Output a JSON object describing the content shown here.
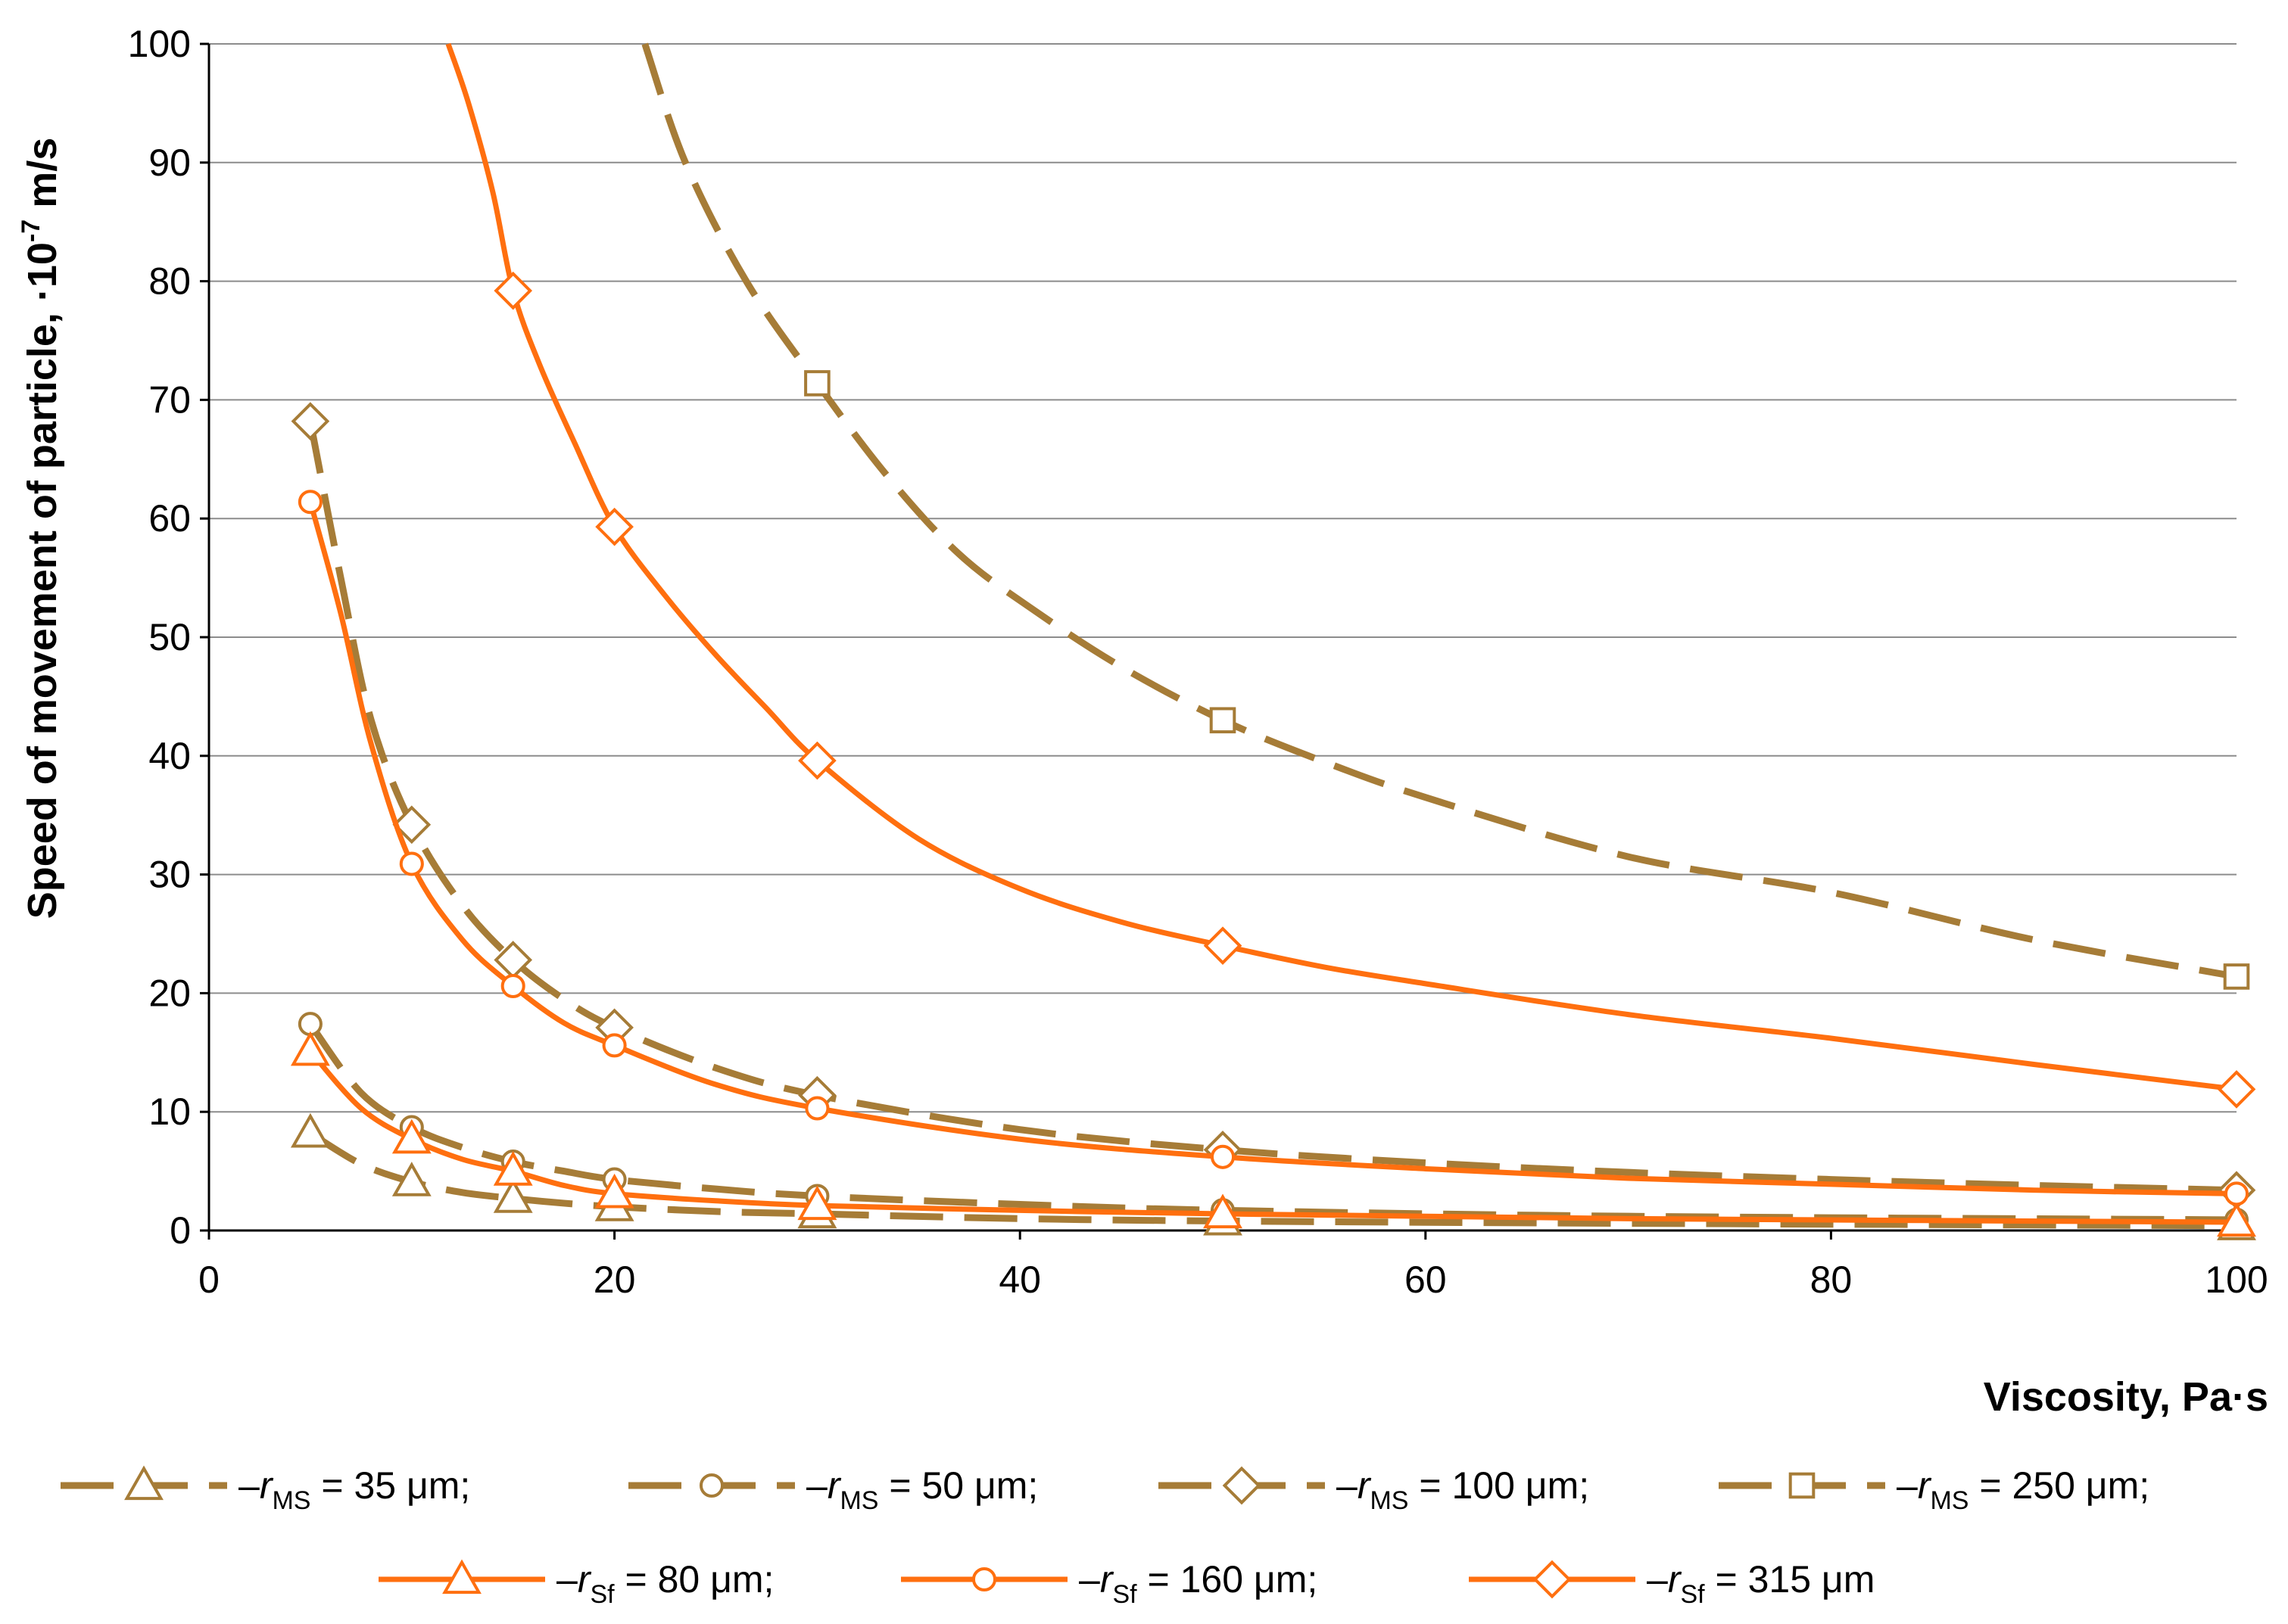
{
  "chart_data": {
    "type": "line",
    "title": "",
    "xlabel": "Viscosity, Pa·s",
    "ylabel": {
      "main": "Speed of movement of particle, ·10",
      "sup": "-7",
      "unit": " m/s"
    },
    "xlim": [
      0,
      100
    ],
    "ylim": [
      0,
      100
    ],
    "xticks": [
      0,
      20,
      40,
      60,
      80,
      100
    ],
    "yticks": [
      0,
      10,
      20,
      30,
      40,
      50,
      60,
      70,
      80,
      90,
      100
    ],
    "grid": "horizontal",
    "legend_position": "bottom",
    "series": [
      {
        "id": "ms35",
        "name": {
          "dash": "–",
          "r": "r",
          "sub": "MS",
          "rest": " = 35  μm;"
        },
        "color": "#A67C37",
        "style": "dashed",
        "marker": "triangle",
        "x": [
          5,
          10,
          15,
          20,
          30,
          50,
          100
        ],
        "y": [
          8.2,
          4.1,
          2.7,
          2.0,
          1.4,
          0.8,
          0.4
        ],
        "curve": [
          [
            5,
            8.2
          ],
          [
            7.5,
            5.6
          ],
          [
            10,
            4.1
          ],
          [
            12.5,
            3.2
          ],
          [
            15,
            2.7
          ],
          [
            17.5,
            2.3
          ],
          [
            20,
            2.0
          ],
          [
            25,
            1.6
          ],
          [
            30,
            1.4
          ],
          [
            40,
            1.0
          ],
          [
            50,
            0.8
          ],
          [
            70,
            0.6
          ],
          [
            100,
            0.4
          ]
        ]
      },
      {
        "id": "ms50",
        "name": {
          "dash": "–",
          "r": "r",
          "sub": "MS",
          "rest": " = 50  μm;"
        },
        "color": "#A67C37",
        "style": "dashed",
        "marker": "circle",
        "x": [
          5,
          10,
          15,
          20,
          30,
          50,
          100
        ],
        "y": [
          17.4,
          8.7,
          5.8,
          4.3,
          2.9,
          1.7,
          0.9
        ],
        "curve": [
          [
            5,
            17.4
          ],
          [
            7.5,
            11.6
          ],
          [
            10,
            8.7
          ],
          [
            12.5,
            7.0
          ],
          [
            15,
            5.8
          ],
          [
            17.5,
            5.0
          ],
          [
            20,
            4.3
          ],
          [
            25,
            3.5
          ],
          [
            30,
            2.9
          ],
          [
            40,
            2.2
          ],
          [
            50,
            1.7
          ],
          [
            70,
            1.2
          ],
          [
            100,
            0.9
          ]
        ]
      },
      {
        "id": "ms100",
        "name": {
          "dash": "–",
          "r": "r",
          "sub": "MS",
          "rest": " = 100  μm;"
        },
        "color": "#A67C37",
        "style": "dashed",
        "marker": "diamond",
        "x": [
          5,
          10,
          15,
          20,
          30,
          50,
          100
        ],
        "y": [
          68.2,
          34.2,
          22.8,
          17.1,
          11.4,
          6.8,
          3.4
        ],
        "curve": [
          [
            5,
            68.2
          ],
          [
            6.5,
            55
          ],
          [
            8,
            43
          ],
          [
            10,
            34.2
          ],
          [
            12.5,
            27.4
          ],
          [
            15,
            22.8
          ],
          [
            17.5,
            19.5
          ],
          [
            20,
            17.1
          ],
          [
            25,
            13.7
          ],
          [
            30,
            11.4
          ],
          [
            40,
            8.5
          ],
          [
            50,
            6.8
          ],
          [
            60,
            5.7
          ],
          [
            70,
            4.9
          ],
          [
            80,
            4.3
          ],
          [
            90,
            3.8
          ],
          [
            100,
            3.4
          ]
        ]
      },
      {
        "id": "ms250",
        "name": {
          "dash": "–",
          "r": "r",
          "sub": "MS",
          "rest": " = 250  μm;"
        },
        "color": "#A67C37",
        "style": "dashed",
        "marker": "square",
        "x": [
          30,
          50,
          100
        ],
        "y": [
          71.4,
          43.0,
          21.4
        ],
        "curve": [
          [
            21.5,
            100
          ],
          [
            23.5,
            90
          ],
          [
            26.5,
            80
          ],
          [
            30,
            71.4
          ],
          [
            33.5,
            63.5
          ],
          [
            37,
            57
          ],
          [
            40.5,
            52.5
          ],
          [
            45,
            47.5
          ],
          [
            50,
            43.0
          ],
          [
            55,
            39.5
          ],
          [
            60,
            36.5
          ],
          [
            70,
            31.5
          ],
          [
            80,
            28.5
          ],
          [
            90,
            24.5
          ],
          [
            100,
            21.4
          ]
        ]
      },
      {
        "id": "sf80",
        "name": {
          "dash": "–",
          "r": "r",
          "sub": "Sf",
          "rest": " = 80  μm;"
        },
        "color": "#FF6F0F",
        "style": "solid",
        "marker": "triangle",
        "x": [
          5,
          10,
          15,
          20,
          30,
          50,
          100
        ],
        "y": [
          15.1,
          7.7,
          5.0,
          3.1,
          2.1,
          1.4,
          0.7
        ],
        "curve": [
          [
            5,
            15.1
          ],
          [
            7.5,
            10.3
          ],
          [
            10,
            7.7
          ],
          [
            12.5,
            6.0
          ],
          [
            15,
            5.0
          ],
          [
            17.5,
            3.8
          ],
          [
            20,
            3.1
          ],
          [
            25,
            2.5
          ],
          [
            30,
            2.1
          ],
          [
            40,
            1.7
          ],
          [
            50,
            1.4
          ],
          [
            70,
            1.0
          ],
          [
            100,
            0.7
          ]
        ]
      },
      {
        "id": "sf160",
        "name": {
          "dash": "–",
          "r": "r",
          "sub": "Sf",
          "rest": " = 160  μm;"
        },
        "color": "#FF6F0F",
        "style": "solid",
        "marker": "circle",
        "x": [
          5,
          10,
          15,
          20,
          30,
          50,
          100
        ],
        "y": [
          61.4,
          30.9,
          20.6,
          15.6,
          10.3,
          6.2,
          3.1
        ],
        "curve": [
          [
            5,
            61.4
          ],
          [
            6.5,
            52
          ],
          [
            8,
            41
          ],
          [
            10,
            30.9
          ],
          [
            12.5,
            24.5
          ],
          [
            15,
            20.6
          ],
          [
            17.5,
            17.5
          ],
          [
            20,
            15.6
          ],
          [
            25,
            12.3
          ],
          [
            30,
            10.3
          ],
          [
            40,
            7.7
          ],
          [
            50,
            6.2
          ],
          [
            60,
            5.2
          ],
          [
            70,
            4.4
          ],
          [
            80,
            3.9
          ],
          [
            90,
            3.4
          ],
          [
            100,
            3.1
          ]
        ]
      },
      {
        "id": "sf315",
        "name": {
          "dash": "–",
          "r": "r",
          "sub": "Sf",
          "rest": " = 315  μm"
        },
        "color": "#FF6F0F",
        "style": "solid",
        "marker": "diamond",
        "x": [
          15,
          20,
          30,
          50,
          100
        ],
        "y": [
          79.2,
          59.3,
          39.6,
          24.0,
          11.9
        ],
        "curve": [
          [
            11.8,
            100
          ],
          [
            12.8,
            95
          ],
          [
            14,
            87.5
          ],
          [
            15,
            79.2
          ],
          [
            16.3,
            73
          ],
          [
            18,
            66.5
          ],
          [
            20,
            59.3
          ],
          [
            22.5,
            53.5
          ],
          [
            25,
            48.5
          ],
          [
            27.5,
            44.0
          ],
          [
            30,
            39.6
          ],
          [
            35,
            33.0
          ],
          [
            40,
            28.8
          ],
          [
            45,
            26.0
          ],
          [
            50,
            24.0
          ],
          [
            55,
            22.2
          ],
          [
            60,
            20.8
          ],
          [
            70,
            18.2
          ],
          [
            80,
            16.2
          ],
          [
            90,
            14.0
          ],
          [
            100,
            11.9
          ]
        ]
      }
    ]
  }
}
